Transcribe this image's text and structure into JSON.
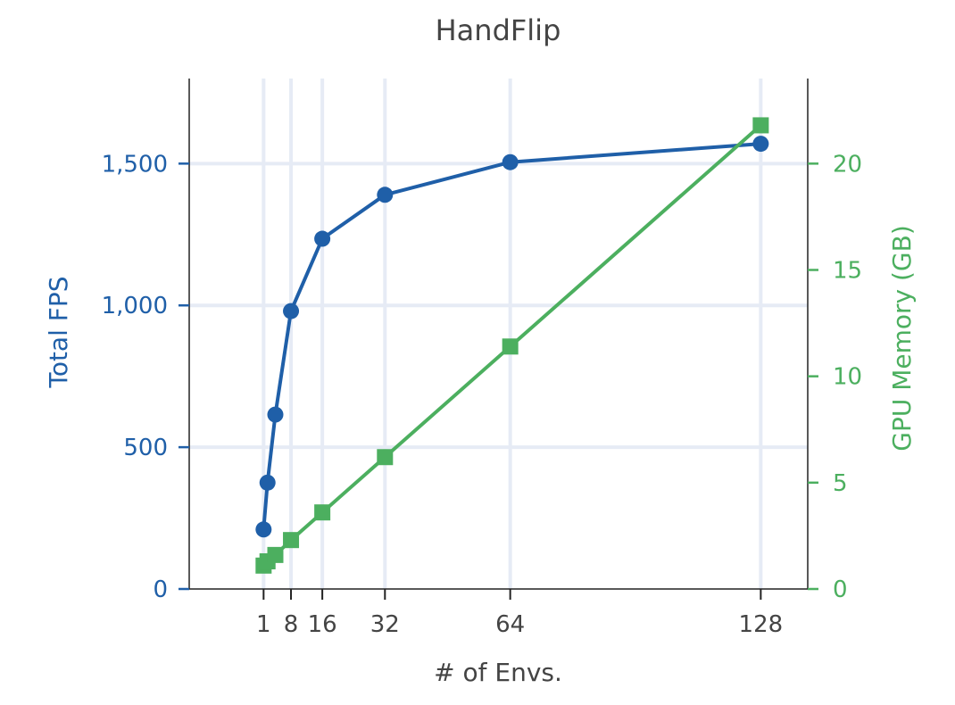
{
  "chart_data": {
    "type": "line",
    "title": "HandFlip",
    "xlabel": "# of Envs.",
    "x": [
      1,
      2,
      4,
      8,
      16,
      32,
      64,
      128
    ],
    "x_ticks": [
      1,
      8,
      16,
      32,
      64,
      128
    ],
    "xlim": [
      -18,
      140
    ],
    "y_left": {
      "label": "Total FPS",
      "lim": [
        0,
        1800
      ],
      "ticks": [
        0,
        500,
        1000,
        1500
      ],
      "tick_labels": [
        "0",
        "500",
        "1,000",
        "1,500"
      ],
      "color": "#1f5fa8"
    },
    "y_right": {
      "label": "GPU Memory (GB)",
      "lim": [
        0,
        24
      ],
      "ticks": [
        0,
        5,
        10,
        15,
        20
      ],
      "tick_labels": [
        "0",
        "5",
        "10",
        "15",
        "20"
      ],
      "color": "#4caf5f"
    },
    "series": [
      {
        "axis": "left",
        "marker": "circle",
        "values": [
          210,
          375,
          615,
          980,
          1235,
          1390,
          1505,
          1570
        ]
      },
      {
        "axis": "right",
        "marker": "square",
        "values": [
          1.1,
          1.3,
          1.6,
          2.3,
          3.6,
          6.2,
          11.4,
          21.8
        ]
      }
    ],
    "grid": true
  }
}
